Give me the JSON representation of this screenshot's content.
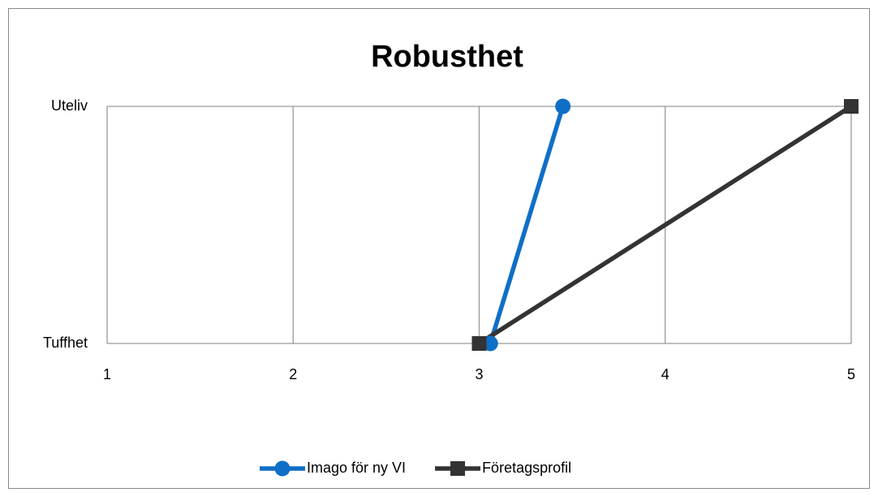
{
  "chart_data": {
    "type": "line",
    "orientation": "horizontal",
    "title": "Robusthet",
    "categories": [
      "Tuffhet",
      "Uteliv"
    ],
    "series": [
      {
        "name": "Imago för ny VI",
        "color": "#0f6fc6",
        "marker": "circle",
        "values": [
          3.06,
          3.45
        ]
      },
      {
        "name": "Företagsprofil",
        "color": "#333333",
        "marker": "square",
        "values": [
          3,
          5
        ]
      }
    ],
    "xlim": [
      1,
      5
    ],
    "xticks": [
      1,
      2,
      3,
      4,
      5
    ],
    "grid": true,
    "legend": "bottom"
  }
}
